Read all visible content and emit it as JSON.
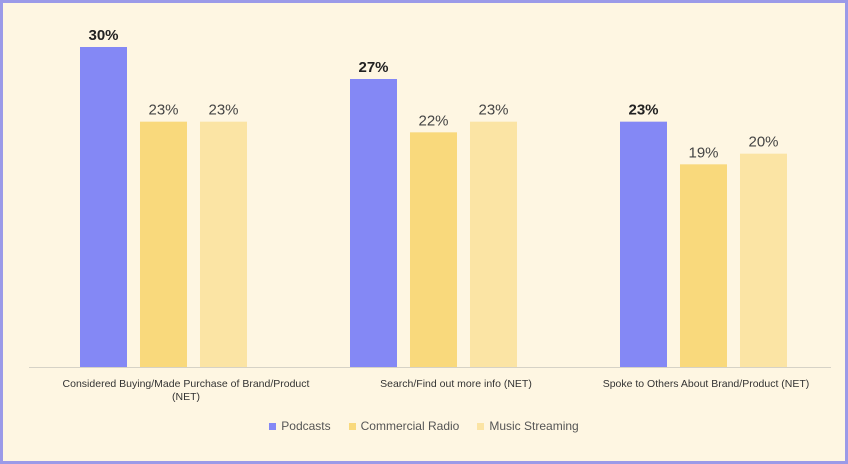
{
  "chart_data": {
    "type": "bar",
    "categories": [
      [
        "Considered Buying/Made Purchase of Brand/Product",
        "(NET)"
      ],
      [
        "Search/Find out more info (NET)"
      ],
      [
        "Spoke to Others About Brand/Product (NET)"
      ]
    ],
    "series": [
      {
        "name": "Podcasts",
        "values": [
          30,
          27,
          23
        ],
        "color": "#8488f5",
        "labels": [
          "30%",
          "27%",
          "23%"
        ],
        "bold_labels": true
      },
      {
        "name": "Commercial Radio",
        "values": [
          23,
          22,
          19
        ],
        "color": "#f9d97c",
        "labels": [
          "23%",
          "22%",
          "19%"
        ],
        "bold_labels": false
      },
      {
        "name": "Music Streaming",
        "values": [
          23,
          23,
          20
        ],
        "color": "#fbe4a4",
        "labels": [
          "23%",
          "23%",
          "20%"
        ],
        "bold_labels": false
      }
    ],
    "ylim": [
      0,
      30
    ],
    "grid": false,
    "legend_position": "bottom"
  }
}
